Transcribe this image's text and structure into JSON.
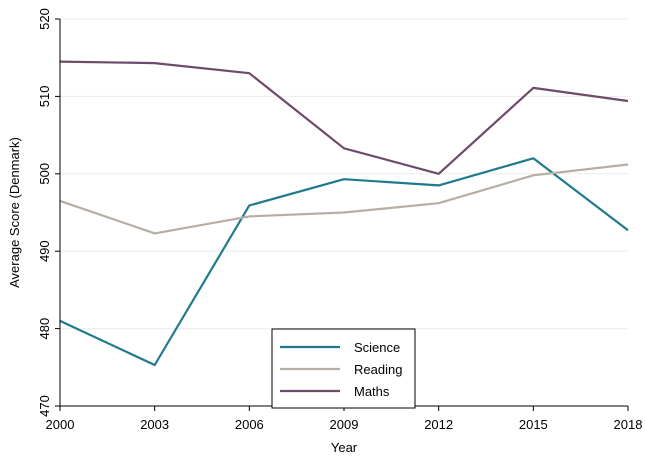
{
  "chart_data": {
    "type": "line",
    "title": "",
    "xlabel": "Year",
    "ylabel": "Average Score (Denmark)",
    "x": [
      2000,
      2003,
      2006,
      2009,
      2012,
      2015,
      2018
    ],
    "xticks": [
      "2000",
      "2003",
      "2006",
      "2009",
      "2012",
      "2015",
      "2018"
    ],
    "yticks": [
      470,
      480,
      490,
      500,
      510,
      520
    ],
    "ylim": [
      470,
      520
    ],
    "xlim": [
      2000,
      2018
    ],
    "grid": true,
    "legend_position": "bottom-center",
    "series": [
      {
        "name": "Science",
        "color": "#1f7a8c",
        "values": [
          481.0,
          475.3,
          495.9,
          499.3,
          498.5,
          502.0,
          492.7
        ]
      },
      {
        "name": "Reading",
        "color": "#b6aea4",
        "values": [
          496.5,
          492.3,
          494.5,
          495.0,
          496.2,
          499.8,
          501.2
        ]
      },
      {
        "name": "Maths",
        "color": "#6e4a6b",
        "values": [
          514.5,
          514.3,
          513.0,
          503.3,
          500.0,
          511.1,
          509.4
        ]
      }
    ]
  }
}
